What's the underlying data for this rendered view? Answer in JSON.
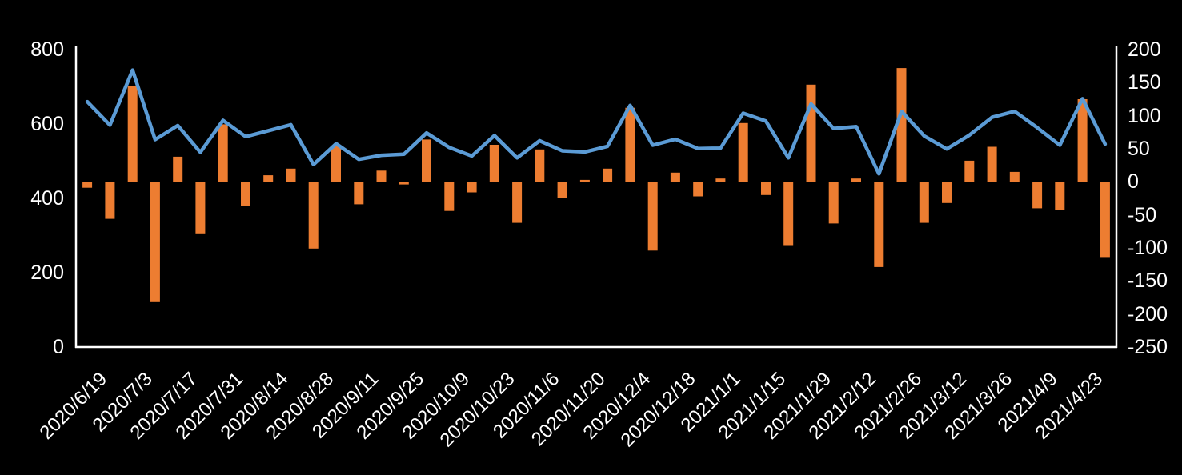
{
  "chart_data": {
    "type": "combo",
    "title": "",
    "legend": false,
    "grid": false,
    "background": "#000000",
    "text_color": "#ffffff",
    "axis_line_color": "#ffffff",
    "x": [
      "2020/6/19",
      "2020/6/26",
      "2020/7/3",
      "2020/7/10",
      "2020/7/17",
      "2020/7/24",
      "2020/7/31",
      "2020/8/7",
      "2020/8/14",
      "2020/8/21",
      "2020/8/28",
      "2020/9/4",
      "2020/9/11",
      "2020/9/18",
      "2020/9/25",
      "2020/10/2",
      "2020/10/9",
      "2020/10/16",
      "2020/10/23",
      "2020/10/30",
      "2020/11/6",
      "2020/11/13",
      "2020/11/20",
      "2020/11/27",
      "2020/12/4",
      "2020/12/11",
      "2020/12/18",
      "2020/12/25",
      "2021/1/1",
      "2021/1/8",
      "2021/1/15",
      "2021/1/22",
      "2021/1/29",
      "2021/2/5",
      "2021/2/12",
      "2021/2/19",
      "2021/2/26",
      "2021/3/5",
      "2021/3/12",
      "2021/3/19",
      "2021/3/26",
      "2021/4/2",
      "2021/4/9",
      "2021/4/16",
      "2021/4/23",
      "2021/4/30"
    ],
    "x_tick_labels": [
      "2020/6/19",
      "2020/7/3",
      "2020/7/17",
      "2020/7/31",
      "2020/8/14",
      "2020/8/28",
      "2020/9/11",
      "2020/9/25",
      "2020/10/9",
      "2020/10/23",
      "2020/11/6",
      "2020/11/20",
      "2020/12/4",
      "2020/12/18",
      "2021/1/1",
      "2021/1/15",
      "2021/1/29",
      "2021/2/12",
      "2021/2/26",
      "2021/3/12",
      "2021/3/26",
      "2021/4/9",
      "2021/4/23"
    ],
    "x_tick_every": 2,
    "series": [
      {
        "name": "line",
        "type": "line",
        "axis": "left",
        "color": "#5B9BD5",
        "values": [
          660,
          597,
          745,
          558,
          596,
          524,
          610,
          566,
          582,
          598,
          491,
          547,
          505,
          516,
          519,
          576,
          537,
          514,
          569,
          509,
          555,
          528,
          525,
          540,
          650,
          543,
          559,
          534,
          535,
          629,
          608,
          509,
          654,
          588,
          593,
          466,
          634,
          568,
          533,
          570,
          618,
          634,
          590,
          543,
          668,
          546
        ]
      },
      {
        "name": "bars",
        "type": "bar",
        "axis": "right",
        "color": "#ED7D31",
        "values": [
          -9,
          -56,
          145,
          -182,
          38,
          -78,
          87,
          -37,
          10,
          20,
          -101,
          55,
          -34,
          17,
          -4,
          64,
          -44,
          -16,
          56,
          -62,
          49,
          -25,
          3,
          20,
          112,
          -104,
          14,
          -22,
          5,
          89,
          -20,
          -97,
          147,
          -63,
          5,
          -129,
          172,
          -62,
          -32,
          32,
          53,
          15,
          -40,
          -43,
          125,
          -115
        ]
      }
    ],
    "left_axis": {
      "min": 0,
      "max": 800,
      "tick_labels": [
        "800",
        "600",
        "400",
        "200",
        "0"
      ]
    },
    "right_axis": {
      "min": -250,
      "max": 200,
      "tick_labels": [
        "200",
        "150",
        "100",
        "50",
        "0",
        "-50",
        "-100",
        "-150",
        "-200",
        "-250"
      ]
    }
  }
}
